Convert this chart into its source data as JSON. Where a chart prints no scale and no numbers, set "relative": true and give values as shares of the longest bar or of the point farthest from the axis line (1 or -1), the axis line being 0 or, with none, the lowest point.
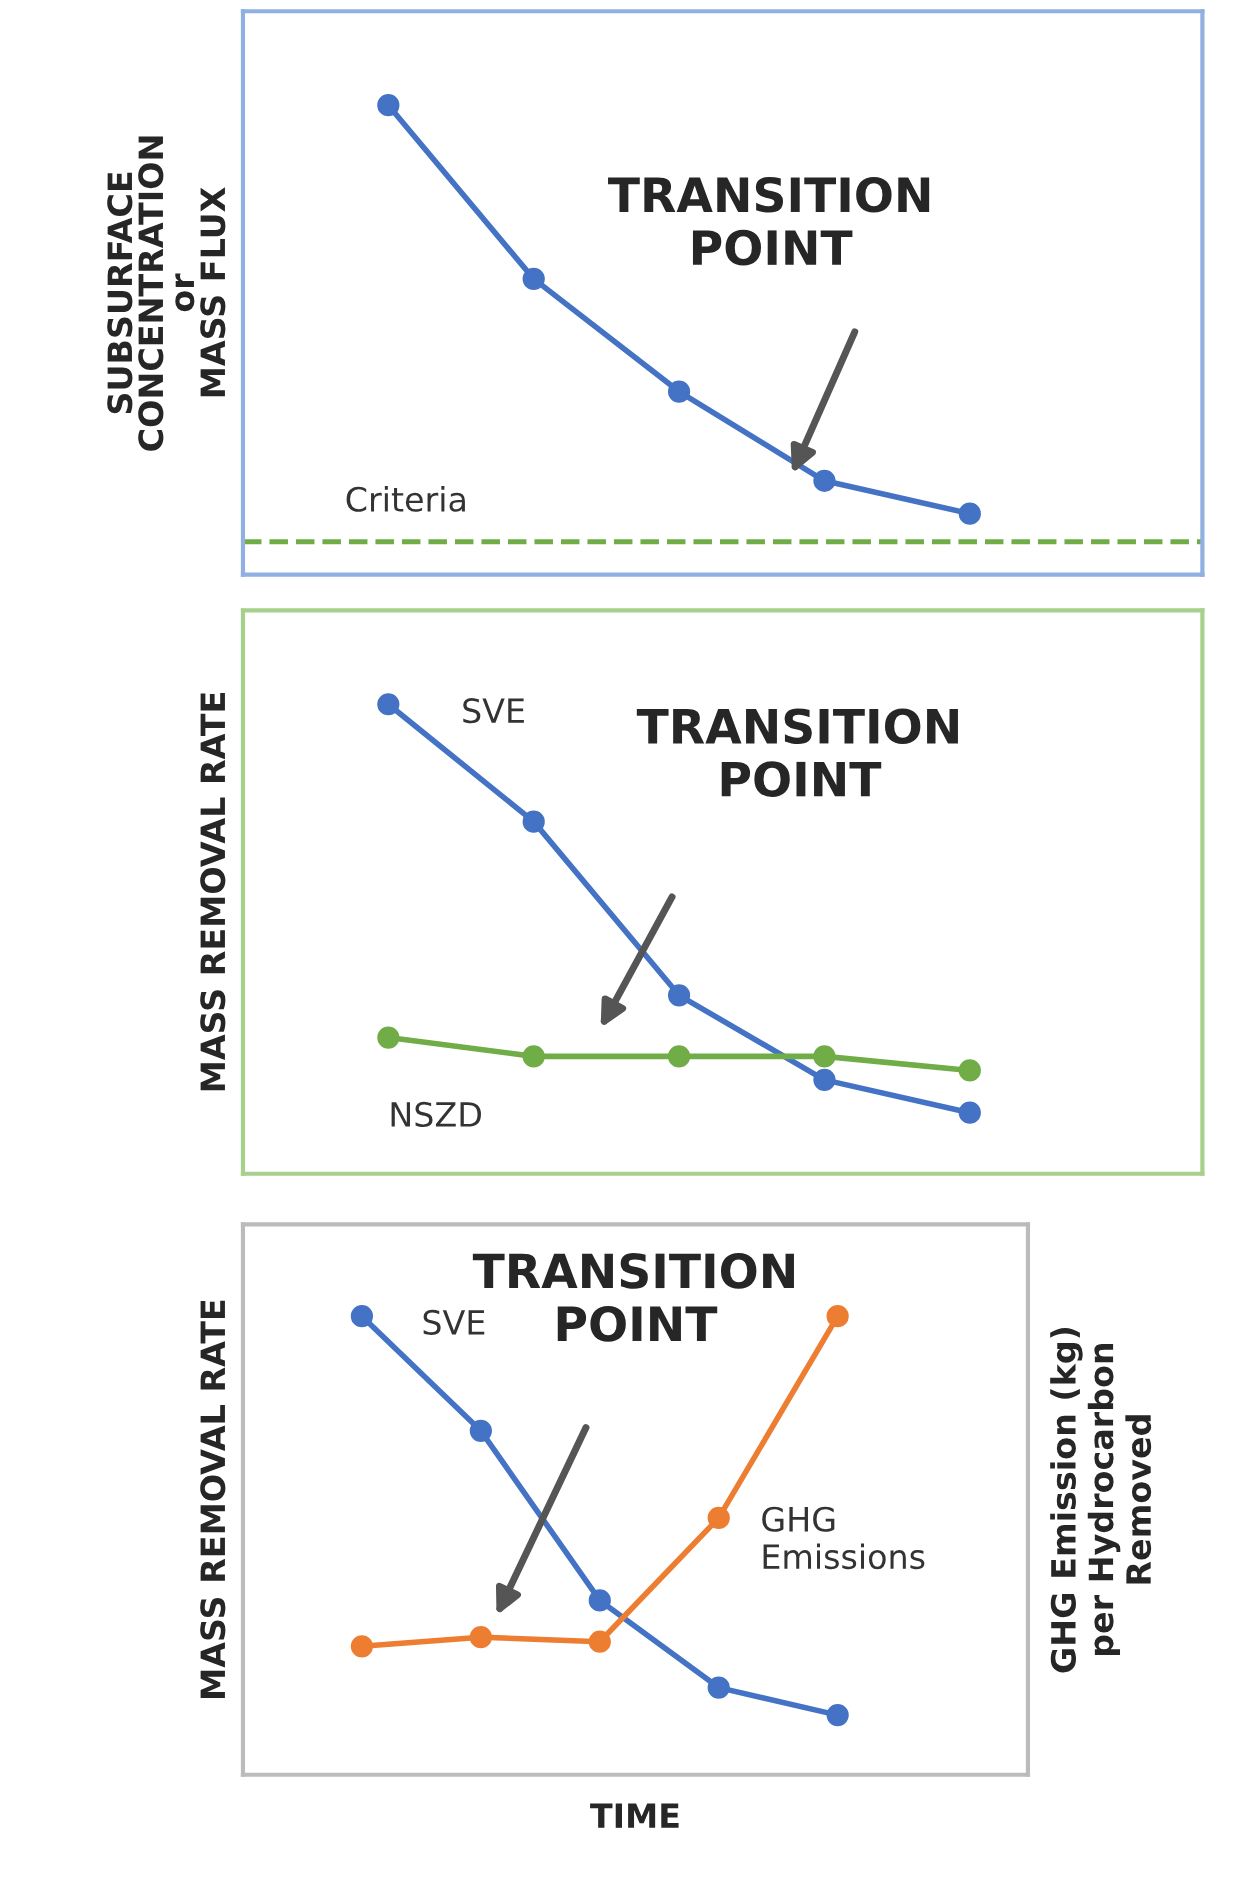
{
  "chart_data": [
    {
      "type": "line",
      "relative": true,
      "ylabel": "SUBSURFACE\nCONCENTRATION\nor\nMASS FLUX",
      "categories": [
        null,
        null,
        null,
        null,
        null
      ],
      "marker": "circle",
      "line_style": "solid",
      "series": [
        {
          "color": "#4472c4",
          "values": [
            1,
            0.63,
            0.39,
            0.2,
            0.13
          ]
        }
      ],
      "ref_lines": [
        {
          "axis": "y",
          "value": 0.07,
          "label": "Criteria",
          "color": "#70ad47",
          "line_style": "dashed"
        }
      ],
      "annotations": [
        "TRANSITION\nPOINT"
      ]
    },
    {
      "type": "line",
      "relative": true,
      "ylabel": "MASS REMOVAL RATE",
      "categories": [
        null,
        null,
        null,
        null,
        null
      ],
      "marker": "circle",
      "line_style": "solid",
      "series": [
        {
          "name": "SVE",
          "color": "#4472c4",
          "values": [
            1,
            0.75,
            0.38,
            0.2,
            0.13
          ]
        },
        {
          "name": "NSZD",
          "color": "#70ad47",
          "values": [
            0.29,
            0.25,
            0.25,
            0.25,
            0.22
          ]
        }
      ],
      "annotations": [
        "TRANSITION\nPOINT"
      ]
    },
    {
      "type": "line",
      "relative": true,
      "xlabel": "TIME",
      "ylabel": "MASS REMOVAL RATE",
      "y2label": "GHG Emission (kg)\nper Hydrocarbon\nRemoved",
      "categories": [
        null,
        null,
        null,
        null,
        null
      ],
      "marker": "circle",
      "line_style": "solid",
      "series": [
        {
          "name": "SVE",
          "color": "#4472c4",
          "values": [
            1,
            0.75,
            0.38,
            0.19,
            0.13
          ]
        },
        {
          "name": "GHG\nEmissions",
          "color": "#ed7d31",
          "values": [
            0.28,
            0.3,
            0.29,
            0.56,
            1
          ]
        }
      ],
      "annotations": [
        "TRANSITION\nPOINT"
      ]
    }
  ]
}
